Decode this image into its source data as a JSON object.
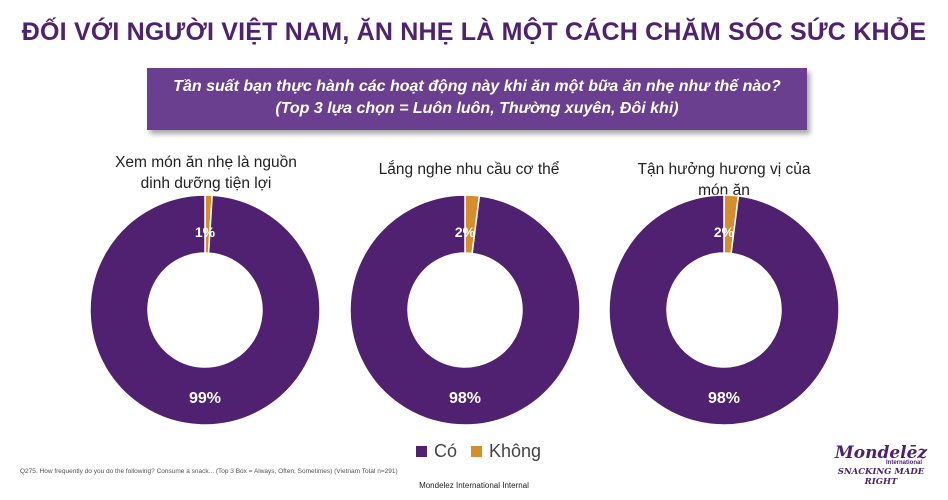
{
  "title": "ĐỐI VỚI NGƯỜI VIỆT NAM, ĂN NHẸ LÀ MỘT CÁCH CHĂM SÓC SỨC KHỎE",
  "banner": {
    "line1": "Tần suất bạn thực hành các hoạt động này khi ăn một bữa ăn nhẹ như thế nào?",
    "line2": "(Top 3 lựa chọn = Luôn luôn, Thường xuyên, Đôi khi)"
  },
  "colors": {
    "yes": "#4f2170",
    "no": "#d58e2b",
    "accent": "#6b3f8f"
  },
  "chart_data": [
    {
      "type": "pie",
      "title_line1": "Xem món ăn nhẹ là nguồn",
      "title_line2": "dinh dưỡng tiện lợi",
      "categories": [
        "Có",
        "Không"
      ],
      "values": [
        99,
        1
      ],
      "labels": [
        "99%",
        "1%"
      ]
    },
    {
      "type": "pie",
      "title_line1": "Lắng nghe nhu cầu cơ thể",
      "title_line2": "",
      "categories": [
        "Có",
        "Không"
      ],
      "values": [
        98,
        2
      ],
      "labels": [
        "98%",
        "2%"
      ]
    },
    {
      "type": "pie",
      "title_line1": "Tận hưởng hương vị của",
      "title_line2": "món ăn",
      "categories": [
        "Có",
        "Không"
      ],
      "values": [
        98,
        2
      ],
      "labels": [
        "98%",
        "2%"
      ]
    }
  ],
  "legend": {
    "yes": "Có",
    "no": "Không"
  },
  "footnote": "Q275. How frequently do you do the following? Consume a snack... (Top 3 Box = Always, Often, Sometimes) (Vietnam Total n=291)",
  "footer": "Mondelez International Internal",
  "logo": {
    "brand": "Mondelēz",
    "sub": "International",
    "tagline": "SNACKING MADE RIGHT"
  }
}
